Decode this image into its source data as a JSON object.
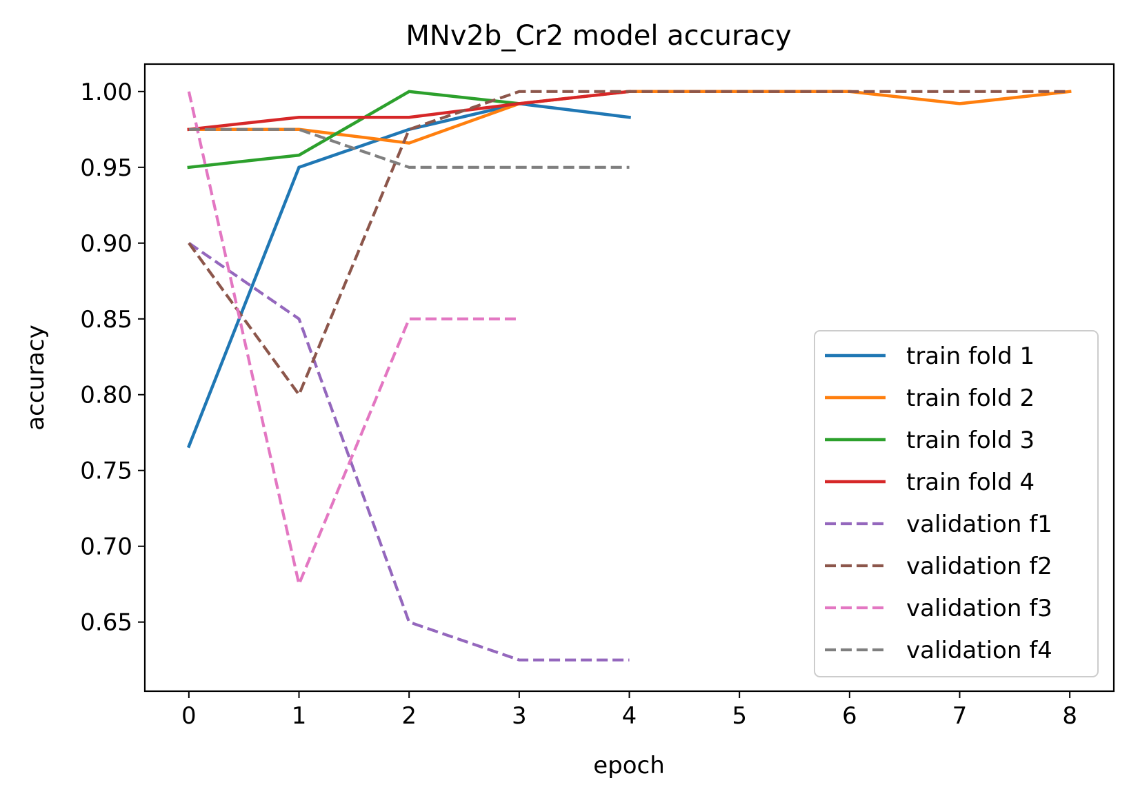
{
  "chart_data": {
    "type": "line",
    "title": "MNv2b_Cr2 model accuracy",
    "xlabel": "epoch",
    "ylabel": "accuracy",
    "xlim": [
      -0.4,
      8.4
    ],
    "ylim": [
      0.6044,
      1.0181
    ],
    "xticks": [
      0,
      1,
      2,
      3,
      4,
      5,
      6,
      7,
      8
    ],
    "yticks": [
      0.65,
      0.7,
      0.75,
      0.8,
      0.85,
      0.9,
      0.95,
      1.0
    ],
    "xtick_labels": [
      "0",
      "1",
      "2",
      "3",
      "4",
      "5",
      "6",
      "7",
      "8"
    ],
    "ytick_labels": [
      "0.65",
      "0.70",
      "0.75",
      "0.80",
      "0.85",
      "0.90",
      "0.95",
      "1.00"
    ],
    "grid": false,
    "legend_position": "lower-right",
    "series": [
      {
        "name": "train fold 1",
        "color": "#1f77b4",
        "style": "solid",
        "x": [
          0,
          1,
          2,
          3,
          4
        ],
        "values": [
          0.766,
          0.95,
          0.975,
          0.992,
          0.983
        ]
      },
      {
        "name": "train fold 2",
        "color": "#ff7f0e",
        "style": "solid",
        "x": [
          0,
          1,
          2,
          3,
          4,
          5,
          6,
          7,
          8
        ],
        "values": [
          0.975,
          0.975,
          0.966,
          0.992,
          1.0,
          1.0,
          1.0,
          0.992,
          1.0
        ]
      },
      {
        "name": "train fold 3",
        "color": "#2ca02c",
        "style": "solid",
        "x": [
          0,
          1,
          2,
          3
        ],
        "values": [
          0.95,
          0.958,
          1.0,
          0.992
        ]
      },
      {
        "name": "train fold 4",
        "color": "#d62728",
        "style": "solid",
        "x": [
          0,
          1,
          2,
          3,
          4
        ],
        "values": [
          0.975,
          0.983,
          0.983,
          0.992,
          1.0
        ]
      },
      {
        "name": "validation f1",
        "color": "#9467bd",
        "style": "dashed",
        "x": [
          0,
          1,
          2,
          3,
          4
        ],
        "values": [
          0.9,
          0.85,
          0.65,
          0.625,
          0.625
        ]
      },
      {
        "name": "validation f2",
        "color": "#8c564b",
        "style": "dashed",
        "x": [
          0,
          1,
          2,
          3,
          4,
          5,
          6,
          7,
          8
        ],
        "values": [
          0.9,
          0.8,
          0.975,
          1.0,
          1.0,
          1.0,
          1.0,
          1.0,
          1.0
        ]
      },
      {
        "name": "validation f3",
        "color": "#e377c2",
        "style": "dashed",
        "x": [
          0,
          1,
          2,
          3
        ],
        "values": [
          1.0,
          0.675,
          0.85,
          0.85
        ]
      },
      {
        "name": "validation f4",
        "color": "#7f7f7f",
        "style": "dashed",
        "x": [
          0,
          1,
          2,
          3,
          4
        ],
        "values": [
          0.975,
          0.975,
          0.95,
          0.95,
          0.95
        ]
      }
    ]
  }
}
